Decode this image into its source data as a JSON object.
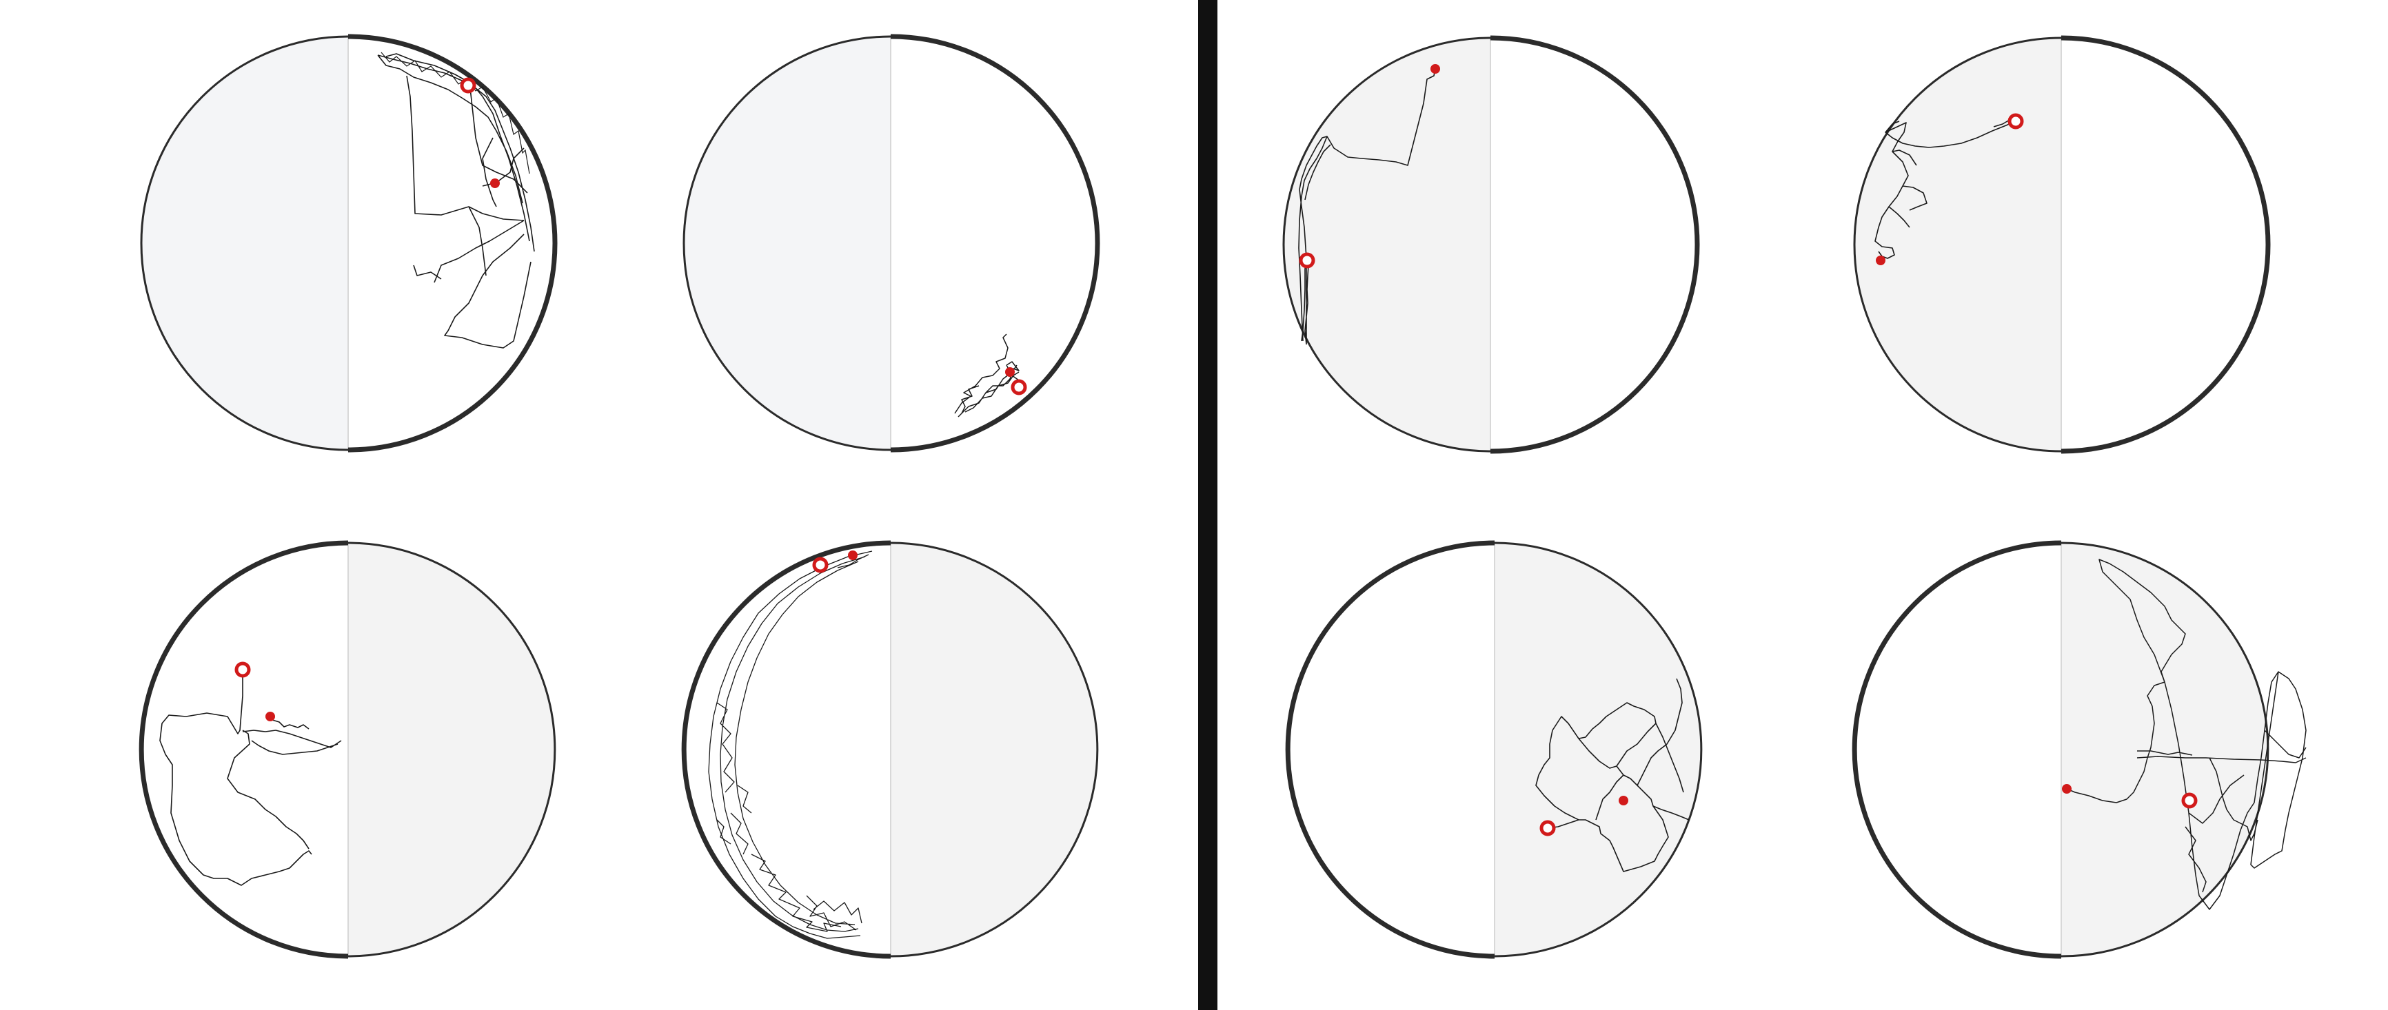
{
  "colors": {
    "background": "#ffffff",
    "shaded_half": "#f3f3f3",
    "shaded_half_alt": "#f4f5f7",
    "circle_outline": "#2b2b2b",
    "divider_bar": "#111111",
    "track": "#1a1a1a",
    "marker": "#d11a1a"
  },
  "panels": [
    {
      "group": "left",
      "shaded": "left",
      "thick_side": "right",
      "track": "panel1"
    },
    {
      "group": "left",
      "shaded": "left",
      "thick_side": "right",
      "track": "panel2"
    },
    {
      "group": "left",
      "shaded": "right",
      "thick_side": "left",
      "track": "panel3"
    },
    {
      "group": "left",
      "shaded": "right",
      "thick_side": "left",
      "track": "panel4"
    },
    {
      "group": "right",
      "shaded": "left",
      "thick_side": "right",
      "track": "panel5"
    },
    {
      "group": "right",
      "shaded": "left",
      "thick_side": "right",
      "track": "panel6"
    },
    {
      "group": "right",
      "shaded": "right",
      "thick_side": "left",
      "track": "panel7"
    },
    {
      "group": "right",
      "shaded": "right",
      "thick_side": "left",
      "track": "panel8"
    }
  ]
}
